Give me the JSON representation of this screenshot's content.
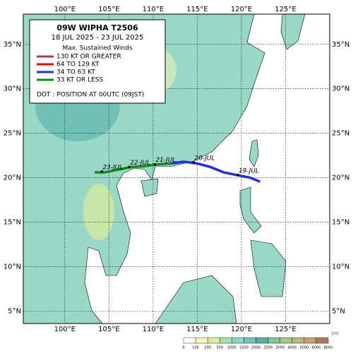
{
  "map": {
    "title": "09W  WIPHA  T2506",
    "period": "18 JUL 2025 - 23 JUL 2025",
    "legend_heading": "Max. Sustained Winds",
    "legend": [
      {
        "label": "130 KT OR GREATER",
        "color": "#b0306a"
      },
      {
        "label": "64 TO 129 KT",
        "color": "#ff0000"
      },
      {
        "label": "34 TO 63 KT",
        "color": "#1a2cff"
      },
      {
        "label": "33 KT OR LESS",
        "color": "#138a13"
      }
    ],
    "note": "DOT : POSITION AT 00UTC (09JST)",
    "lon_range": [
      95.3,
      130
    ],
    "lat_range": [
      3.6,
      38.4
    ],
    "lon_ticks": [
      {
        "value": 100,
        "label": "100°E"
      },
      {
        "value": 105,
        "label": "105°E"
      },
      {
        "value": 110,
        "label": "110°E"
      },
      {
        "value": 115,
        "label": "115°E"
      },
      {
        "value": 120,
        "label": "120°E"
      },
      {
        "value": 125,
        "label": "125°E"
      }
    ],
    "lat_ticks": [
      {
        "value": 5,
        "label": "5°N"
      },
      {
        "value": 10,
        "label": "10°N"
      },
      {
        "value": 15,
        "label": "15°N"
      },
      {
        "value": 20,
        "label": "20°N"
      },
      {
        "value": 25,
        "label": "25°N"
      },
      {
        "value": 30,
        "label": "30°N"
      },
      {
        "value": 35,
        "label": "35°N"
      }
    ],
    "track": [
      {
        "color": "#1a2cff",
        "points": [
          [
            122,
            19.6
          ],
          [
            121,
            20.0
          ],
          [
            120,
            20.2
          ],
          [
            118,
            20.6
          ],
          [
            116.5,
            21.2
          ],
          [
            115,
            21.6
          ],
          [
            113.5,
            21.8
          ],
          [
            112,
            21.6
          ]
        ]
      },
      {
        "color": "#138a13",
        "points": [
          [
            112,
            21.6
          ],
          [
            110.5,
            21.5
          ],
          [
            109,
            21.3
          ],
          [
            107.5,
            21.2
          ],
          [
            106,
            20.9
          ],
          [
            104.5,
            20.6
          ],
          [
            103.5,
            20.6
          ]
        ]
      }
    ],
    "dates": [
      {
        "label": "19-JUL",
        "lon": 119.6,
        "lat": 20.3
      },
      {
        "label": "20-JUL",
        "lon": 114.6,
        "lat": 21.7
      },
      {
        "label": "21-JUL",
        "lon": 110.2,
        "lat": 21.5
      },
      {
        "label": "22-JUL",
        "lon": 107.3,
        "lat": 21.2
      },
      {
        "label": "23-JUL",
        "lon": 104.2,
        "lat": 20.7
      }
    ],
    "elevation_scale": {
      "unit": "[m]",
      "ticks": [
        0,
        100,
        200,
        500,
        1000,
        1500,
        2000,
        2500,
        3000,
        4000,
        5000,
        6000,
        8000
      ],
      "colors": [
        "#ffffff",
        "#f7f3b0",
        "#d8ee9a",
        "#a8e0a0",
        "#8fd4c0",
        "#6fc4b8",
        "#57b0a8",
        "#7ec8a0",
        "#9ccc80",
        "#b6b878",
        "#c8a070",
        "#b07860"
      ]
    }
  }
}
